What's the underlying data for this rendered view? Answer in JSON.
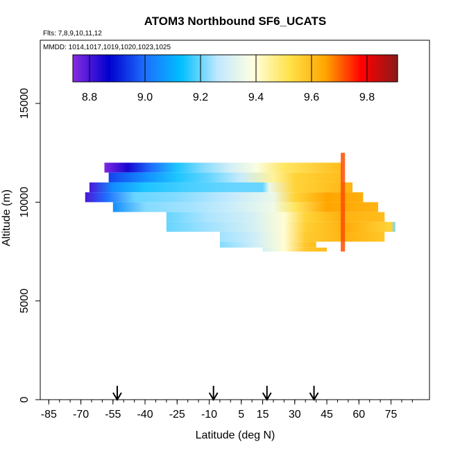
{
  "chart_data": {
    "type": "heatmap",
    "title": "ATOM3 Northbound SF6_UCATS",
    "flights_label": "Flts: 7,8,9,10,11,12",
    "dates_label": "MMDD: 1014,1017,1019,1020,1023,1025",
    "xlabel": "Latitude (deg N)",
    "ylabel": "Altitude (m)",
    "xlim": [
      -85,
      85
    ],
    "ylim": [
      0,
      18000
    ],
    "x_tick_labels": [
      "-85",
      "-70",
      "-55",
      "-40",
      "-25",
      "-10",
      "5",
      "15",
      "30",
      "45",
      "60",
      "75"
    ],
    "x_tick_values": [
      -85,
      -70,
      -55,
      -40,
      -25,
      -10,
      5,
      15,
      30,
      45,
      60,
      75
    ],
    "x_minor_step": 5,
    "y_tick_labels": [
      "0",
      "5000",
      "10000",
      "15000"
    ],
    "y_tick_values": [
      0,
      5000,
      10000,
      15000
    ],
    "colorbar": {
      "min": 8.74,
      "max": 9.91,
      "tick_labels": [
        "8.8",
        "9.0",
        "9.2",
        "9.4",
        "9.6",
        "9.8"
      ],
      "tick_values": [
        8.8,
        9.0,
        9.2,
        9.4,
        9.6,
        9.8
      ],
      "colors": [
        "#8a2be2",
        "#0000cd",
        "#1e6fff",
        "#00bfff",
        "#bfe8ff",
        "#ffffe0",
        "#ffe24a",
        "#ffa500",
        "#ff0000",
        "#8b1a1a"
      ]
    },
    "arrows_latitude": [
      -53,
      -8,
      17,
      39
    ],
    "bands": [
      {
        "alt_min": 11500,
        "alt_max": 12000,
        "lat_min": -59,
        "lat_max": 52,
        "values": [
          [
            -59,
            8.75
          ],
          [
            -48,
            8.85
          ],
          [
            -37,
            9.0
          ],
          [
            -25,
            9.15
          ],
          [
            -13,
            9.22
          ],
          [
            0,
            9.3
          ],
          [
            12,
            9.38
          ],
          [
            25,
            9.5
          ],
          [
            52,
            9.6
          ]
        ]
      },
      {
        "alt_min": 11000,
        "alt_max": 11500,
        "lat_min": -57,
        "lat_max": 52,
        "values": [
          [
            -57,
            8.95
          ],
          [
            -40,
            9.05
          ],
          [
            -25,
            9.15
          ],
          [
            -10,
            9.2
          ],
          [
            5,
            9.28
          ],
          [
            20,
            9.45
          ],
          [
            30,
            9.55
          ],
          [
            52,
            9.6
          ]
        ]
      },
      {
        "alt_min": 10500,
        "alt_max": 11000,
        "lat_min": -66,
        "lat_max": 57,
        "values": [
          [
            -66,
            8.8
          ],
          [
            -55,
            9.05
          ],
          [
            -40,
            9.15
          ],
          [
            -20,
            9.18
          ],
          [
            0,
            9.2
          ],
          [
            15,
            9.2
          ],
          [
            18,
            9.35
          ],
          [
            30,
            9.55
          ],
          [
            57,
            9.62
          ]
        ]
      },
      {
        "alt_min": 10000,
        "alt_max": 10500,
        "lat_min": -68,
        "lat_max": 62,
        "values": [
          [
            -68,
            8.8
          ],
          [
            -58,
            9.0
          ],
          [
            -45,
            9.2
          ],
          [
            -25,
            9.22
          ],
          [
            0,
            9.27
          ],
          [
            20,
            9.35
          ],
          [
            30,
            9.55
          ],
          [
            45,
            9.65
          ],
          [
            62,
            9.63
          ]
        ]
      },
      {
        "alt_min": 9500,
        "alt_max": 10000,
        "lat_min": -55,
        "lat_max": 69,
        "values": [
          [
            -55,
            9.05
          ],
          [
            -40,
            9.22
          ],
          [
            -20,
            9.24
          ],
          [
            0,
            9.28
          ],
          [
            20,
            9.36
          ],
          [
            30,
            9.5
          ],
          [
            45,
            9.65
          ],
          [
            69,
            9.62
          ]
        ]
      },
      {
        "alt_min": 9000,
        "alt_max": 9500,
        "lat_min": -30,
        "lat_max": 72,
        "values": [
          [
            -30,
            9.2
          ],
          [
            -10,
            9.25
          ],
          [
            10,
            9.3
          ],
          [
            25,
            9.4
          ],
          [
            35,
            9.55
          ],
          [
            50,
            9.62
          ],
          [
            72,
            9.6
          ]
        ]
      },
      {
        "alt_min": 8500,
        "alt_max": 9000,
        "lat_min": -30,
        "lat_max": 77,
        "values": [
          [
            -30,
            9.2
          ],
          [
            -10,
            9.24
          ],
          [
            10,
            9.3
          ],
          [
            25,
            9.4
          ],
          [
            35,
            9.56
          ],
          [
            55,
            9.63
          ],
          [
            75,
            9.55
          ],
          [
            77,
            9.2
          ]
        ]
      },
      {
        "alt_min": 8000,
        "alt_max": 8500,
        "lat_min": -5,
        "lat_max": 72,
        "values": [
          [
            -5,
            9.24
          ],
          [
            10,
            9.28
          ],
          [
            25,
            9.4
          ],
          [
            35,
            9.57
          ],
          [
            55,
            9.62
          ],
          [
            72,
            9.58
          ]
        ]
      },
      {
        "alt_min": 7700,
        "alt_max": 8000,
        "lat_min": -5,
        "lat_max": 40,
        "values": [
          [
            -5,
            9.22
          ],
          [
            10,
            9.28
          ],
          [
            25,
            9.4
          ],
          [
            35,
            9.58
          ],
          [
            40,
            9.6
          ]
        ]
      },
      {
        "alt_min": 7500,
        "alt_max": 7700,
        "lat_min": 15,
        "lat_max": 45,
        "values": [
          [
            15,
            9.3
          ],
          [
            25,
            9.4
          ],
          [
            35,
            9.58
          ],
          [
            45,
            9.6
          ]
        ]
      }
    ],
    "profile": {
      "lat_min": 51.5,
      "lat_max": 53.5,
      "alt_min": 7500,
      "alt_max": 12500,
      "value": 9.72
    }
  }
}
